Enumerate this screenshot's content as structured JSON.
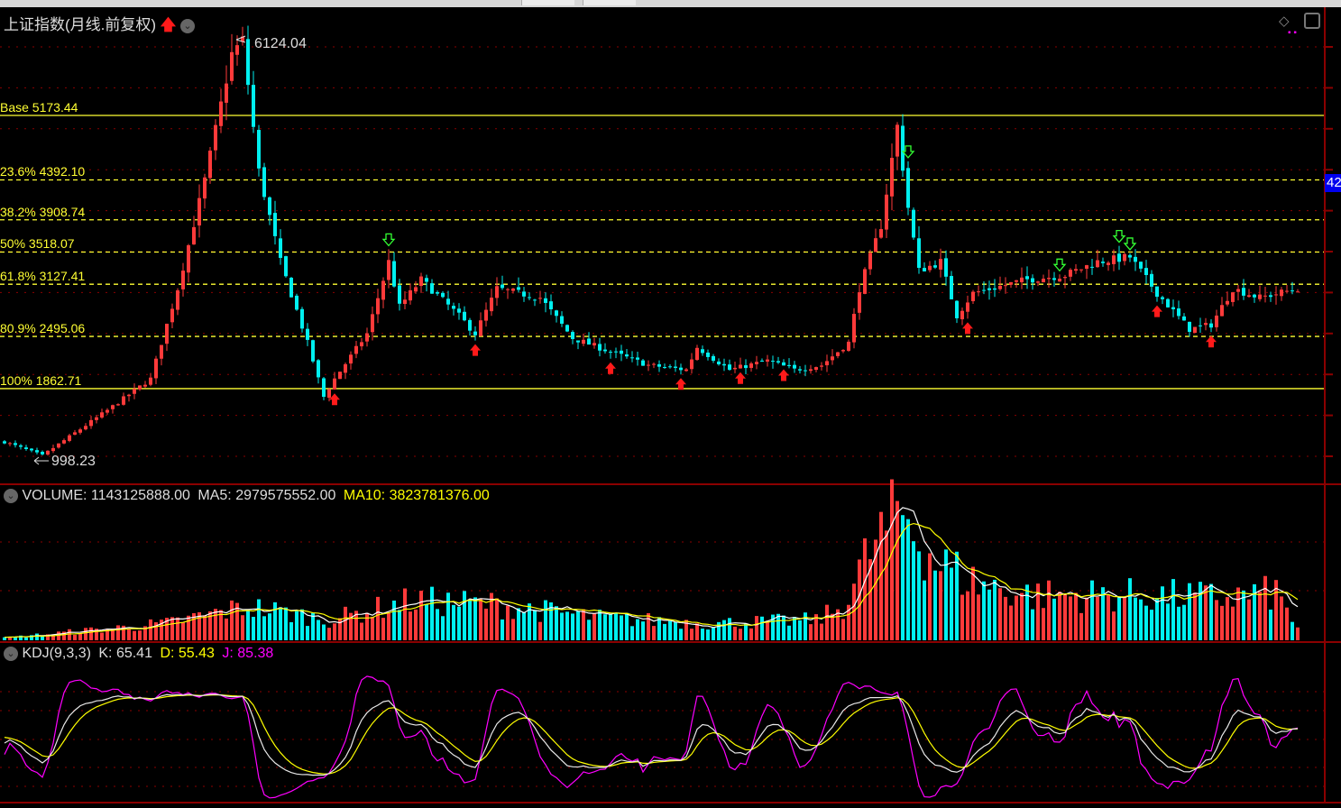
{
  "title": "上证指数(月线.前复权)",
  "icons": {
    "trend": "red-up-arrow-icon",
    "menu": "chevron-down-circle-icon",
    "diamond": "diamond-icon",
    "panel_toggle": "panel-toggle-icon"
  },
  "colors": {
    "up": "#ff3a3a",
    "down": "#00f0f0",
    "fib": "#ffff33",
    "grid": "#8b0000",
    "ma5": "#ffffff",
    "ma10": "#ffff00",
    "j": "#ff00ff"
  },
  "price_label": "42",
  "high_label": "6124.04",
  "low_label": "998.23",
  "fib_levels": [
    {
      "label": "Base 5173.44",
      "price": 5173.44,
      "style": "solid"
    },
    {
      "label": "23.6% 4392.10",
      "price": 4392.1,
      "style": "dashed"
    },
    {
      "label": "38.2% 3908.74",
      "price": 3908.74,
      "style": "dashed"
    },
    {
      "label": "50% 3518.07",
      "price": 3518.07,
      "style": "dashed"
    },
    {
      "label": "61.8% 3127.41",
      "price": 3127.41,
      "style": "dashed"
    },
    {
      "label": "80.9% 2495.06",
      "price": 2495.06,
      "style": "dashed"
    },
    {
      "label": "100% 1862.71",
      "price": 1862.71,
      "style": "solid"
    }
  ],
  "volume": {
    "label": "VOLUME: 1143125888.00",
    "ma5": "MA5: 2979575552.00",
    "ma10": "MA10: 3823781376.00"
  },
  "kdj": {
    "label": "KDJ(9,3,3)",
    "k": "K: 65.41",
    "d": "D: 55.43",
    "j": "J: 85.38"
  },
  "chart_data": {
    "type": "candlestick",
    "bars": 240,
    "price_path": [
      [
        0,
        1217
      ],
      [
        7,
        1053
      ],
      [
        19,
        1600
      ],
      [
        27,
        1982
      ],
      [
        32,
        3075
      ],
      [
        37,
        4387
      ],
      [
        42,
        5917
      ],
      [
        44,
        6080
      ],
      [
        47,
        4497
      ],
      [
        51,
        3400
      ],
      [
        56,
        2417
      ],
      [
        59,
        1763
      ],
      [
        61,
        1982
      ],
      [
        67,
        2528
      ],
      [
        71,
        3400
      ],
      [
        73,
        2856
      ],
      [
        77,
        3184
      ],
      [
        84,
        2746
      ],
      [
        87,
        2528
      ],
      [
        91,
        3075
      ],
      [
        99,
        2965
      ],
      [
        105,
        2474
      ],
      [
        112,
        2310
      ],
      [
        119,
        2146
      ],
      [
        126,
        2091
      ],
      [
        128,
        2364
      ],
      [
        134,
        2091
      ],
      [
        141,
        2200
      ],
      [
        146,
        2091
      ],
      [
        151,
        2146
      ],
      [
        156,
        2419
      ],
      [
        158,
        3075
      ],
      [
        162,
        3840
      ],
      [
        165,
        5042
      ],
      [
        167,
        4058
      ],
      [
        169,
        3293
      ],
      [
        173,
        3400
      ],
      [
        176,
        2746
      ],
      [
        179,
        3020
      ],
      [
        189,
        3184
      ],
      [
        196,
        3238
      ],
      [
        202,
        3400
      ],
      [
        208,
        3457
      ],
      [
        213,
        3020
      ],
      [
        219,
        2583
      ],
      [
        223,
        2637
      ],
      [
        227,
        3075
      ],
      [
        232,
        2965
      ],
      [
        239,
        3075
      ]
    ],
    "volume_path_billion": [
      [
        0,
        0.2
      ],
      [
        30,
        1.5
      ],
      [
        45,
        3
      ],
      [
        60,
        1.8
      ],
      [
        75,
        3.5
      ],
      [
        90,
        3.2
      ],
      [
        110,
        2
      ],
      [
        130,
        1.5
      ],
      [
        150,
        1.8
      ],
      [
        155,
        3
      ],
      [
        160,
        8
      ],
      [
        166,
        11.5
      ],
      [
        172,
        7
      ],
      [
        180,
        5
      ],
      [
        190,
        4
      ],
      [
        210,
        4
      ],
      [
        225,
        3.8
      ],
      [
        235,
        4.2
      ],
      [
        239,
        1.14
      ]
    ],
    "buy_signal_bars": [
      61,
      87,
      112,
      125,
      136,
      144,
      178,
      213,
      223
    ],
    "sell_signal_bars": [
      71,
      167,
      195,
      206,
      208
    ],
    "high": 6124.04,
    "low": 998.23
  }
}
